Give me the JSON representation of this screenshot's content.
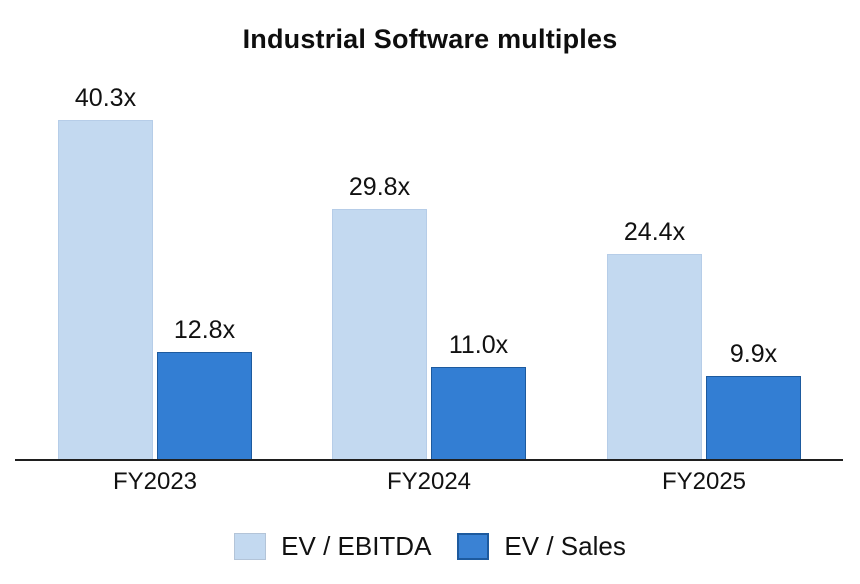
{
  "chart_data": {
    "type": "bar",
    "title": "Industrial Software multiples",
    "categories": [
      "FY2023",
      "FY2024",
      "FY2025"
    ],
    "series": [
      {
        "name": "EV / EBITDA",
        "values": [
          40.3,
          29.8,
          24.4
        ],
        "labels": [
          "40.3x",
          "29.8x",
          "24.4x"
        ],
        "color": "#c3d9f0"
      },
      {
        "name": "EV / Sales",
        "values": [
          12.8,
          11.0,
          9.9
        ],
        "labels": [
          "12.8x",
          "11.0x",
          "9.9x"
        ],
        "color": "#337ed3"
      }
    ],
    "value_suffix": "x",
    "ylim": [
      0,
      43
    ],
    "grid": false,
    "y_axis_visible": false,
    "legend_position": "bottom"
  },
  "colors": {
    "ev_ebitda": "#c3d9f0",
    "ev_sales": "#337ed3",
    "axis_line": "#1f1f1f",
    "text": "#111111",
    "background": "#ffffff"
  }
}
